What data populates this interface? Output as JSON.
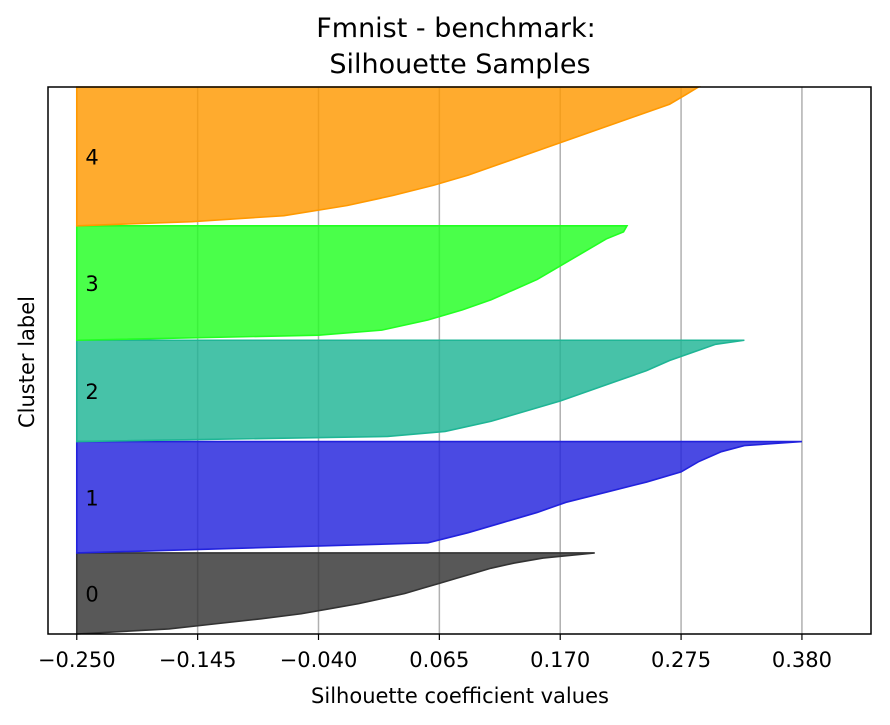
{
  "chart_data": {
    "type": "area",
    "title": "Fmnist - benchmark:",
    "subtitle": "Silhouette Samples",
    "xlabel": "Silhouette coefficient values",
    "ylabel": "Cluster label",
    "xlim": [
      -0.275,
      0.44
    ],
    "x_ticks": [
      "−0.250",
      "−0.145",
      "−0.040",
      "0.065",
      "0.170",
      "0.275",
      "0.380"
    ],
    "x_tick_values": [
      -0.25,
      -0.145,
      -0.04,
      0.065,
      0.17,
      0.275,
      0.38
    ],
    "grid": "vertical",
    "series": [
      {
        "name": "0",
        "color": "#333333",
        "ymin": 0,
        "ymax": 80,
        "profile": [
          [
            0,
            -0.25
          ],
          [
            5,
            -0.17
          ],
          [
            10,
            -0.13
          ],
          [
            15,
            -0.09
          ],
          [
            20,
            -0.055
          ],
          [
            25,
            -0.03
          ],
          [
            30,
            -0.005
          ],
          [
            35,
            0.015
          ],
          [
            40,
            0.035
          ],
          [
            45,
            0.05
          ],
          [
            50,
            0.065
          ],
          [
            55,
            0.08
          ],
          [
            60,
            0.095
          ],
          [
            65,
            0.11
          ],
          [
            70,
            0.13
          ],
          [
            75,
            0.155
          ],
          [
            80,
            0.2
          ]
        ]
      },
      {
        "name": "1",
        "color": "#2222dd",
        "ymin": 80,
        "ymax": 190,
        "profile": [
          [
            0,
            -0.25
          ],
          [
            10,
            0.055
          ],
          [
            20,
            0.09
          ],
          [
            30,
            0.12
          ],
          [
            40,
            0.15
          ],
          [
            50,
            0.175
          ],
          [
            60,
            0.21
          ],
          [
            70,
            0.245
          ],
          [
            80,
            0.275
          ],
          [
            90,
            0.29
          ],
          [
            100,
            0.31
          ],
          [
            106,
            0.33
          ],
          [
            110,
            0.38
          ]
        ]
      },
      {
        "name": "2",
        "color": "#1fb595",
        "ymin": 190,
        "ymax": 290,
        "profile": [
          [
            0,
            -0.25
          ],
          [
            5,
            0.02
          ],
          [
            10,
            0.07
          ],
          [
            20,
            0.11
          ],
          [
            30,
            0.14
          ],
          [
            40,
            0.17
          ],
          [
            50,
            0.195
          ],
          [
            60,
            0.22
          ],
          [
            70,
            0.245
          ],
          [
            80,
            0.265
          ],
          [
            90,
            0.29
          ],
          [
            96,
            0.305
          ],
          [
            100,
            0.33
          ]
        ]
      },
      {
        "name": "3",
        "color": "#22ff22",
        "ymin": 290,
        "ymax": 403,
        "profile": [
          [
            0,
            -0.25
          ],
          [
            5,
            -0.04
          ],
          [
            10,
            0.015
          ],
          [
            20,
            0.055
          ],
          [
            30,
            0.085
          ],
          [
            40,
            0.11
          ],
          [
            50,
            0.13
          ],
          [
            60,
            0.15
          ],
          [
            70,
            0.165
          ],
          [
            80,
            0.18
          ],
          [
            90,
            0.195
          ],
          [
            100,
            0.21
          ],
          [
            107,
            0.225
          ],
          [
            113,
            0.228
          ]
        ]
      },
      {
        "name": "4",
        "color": "#ff9900",
        "ymin": 403,
        "ymax": 540,
        "profile": [
          [
            0,
            -0.25
          ],
          [
            4,
            -0.15
          ],
          [
            10,
            -0.07
          ],
          [
            20,
            -0.015
          ],
          [
            30,
            0.025
          ],
          [
            40,
            0.06
          ],
          [
            50,
            0.09
          ],
          [
            60,
            0.115
          ],
          [
            70,
            0.14
          ],
          [
            80,
            0.165
          ],
          [
            90,
            0.19
          ],
          [
            100,
            0.215
          ],
          [
            110,
            0.24
          ],
          [
            120,
            0.265
          ],
          [
            130,
            0.28
          ],
          [
            137,
            0.29
          ]
        ]
      }
    ]
  }
}
